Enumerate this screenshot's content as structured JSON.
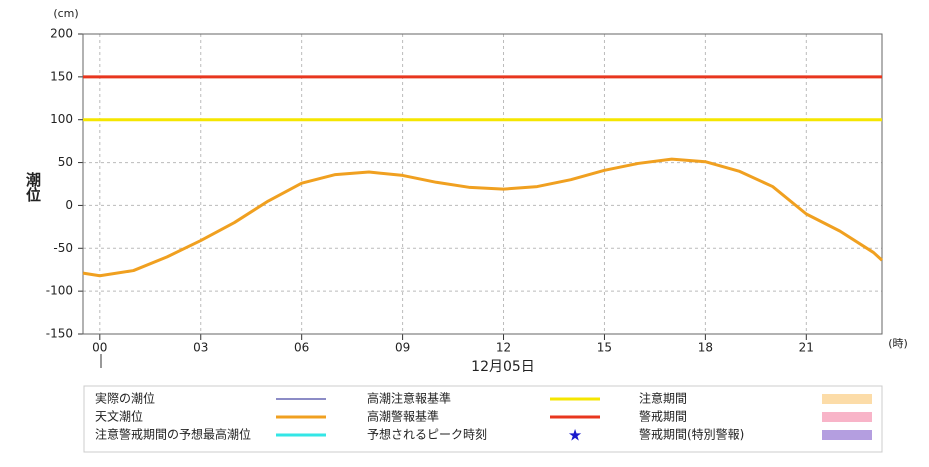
{
  "chart_data": {
    "type": "line",
    "y_unit": "(cm)",
    "y_label": "潮位",
    "x_unit": "(時)",
    "x_label": "12月05日",
    "x": [
      -0.5,
      0,
      1,
      2,
      3,
      4,
      5,
      6,
      7,
      8,
      9,
      10,
      11,
      12,
      13,
      14,
      15,
      16,
      17,
      18,
      19,
      20,
      21,
      22,
      23,
      23.25
    ],
    "xlim": [
      -0.5,
      23.25
    ],
    "xticks": [
      {
        "value": 0,
        "label": "00"
      },
      {
        "value": 3,
        "label": "03"
      },
      {
        "value": 6,
        "label": "06"
      },
      {
        "value": 9,
        "label": "09"
      },
      {
        "value": 12,
        "label": "12"
      },
      {
        "value": 15,
        "label": "15"
      },
      {
        "value": 18,
        "label": "18"
      },
      {
        "value": 21,
        "label": "21"
      }
    ],
    "ylim": [
      -150,
      200
    ],
    "yticks": [
      -150,
      -100,
      -50,
      0,
      50,
      100,
      150,
      200
    ],
    "grid": true,
    "legend": [
      {
        "name": "実際の潮位",
        "color": "#1a1a8c",
        "marker": "thin-line"
      },
      {
        "name": "天文潮位",
        "color": "#f0a020",
        "marker": "line",
        "values": [
          -79,
          -82,
          -76,
          -60,
          -41,
          -20,
          5,
          26,
          36,
          39,
          35,
          27,
          21,
          19,
          22,
          30,
          41,
          49,
          54,
          51,
          40,
          22,
          -10,
          -30,
          -55,
          -64
        ]
      },
      {
        "name": "注意警戒期間の予想最高潮位",
        "color": "#33e6e6",
        "marker": "line"
      },
      {
        "name": "高潮注意報基準",
        "color": "#f5e600",
        "marker": "line",
        "value": 100
      },
      {
        "name": "高潮警報基準",
        "color": "#e8361e",
        "marker": "line",
        "value": 150
      },
      {
        "name": "予想されるピーク時刻",
        "color": "#1a1acc",
        "marker": "star"
      },
      {
        "name": "注意期間",
        "color": "#fcdca8",
        "marker": "box"
      },
      {
        "name": "警戒期間",
        "color": "#f8b4c8",
        "marker": "box"
      },
      {
        "name": "警戒期間(特別警報)",
        "color": "#b49ee0",
        "marker": "box"
      }
    ]
  }
}
